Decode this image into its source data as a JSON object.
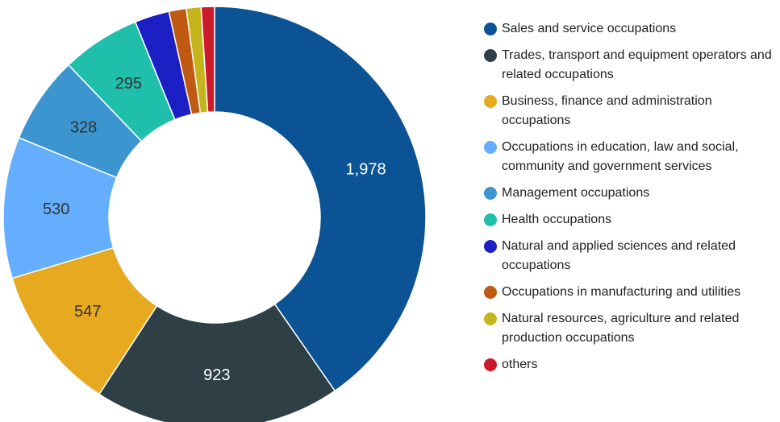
{
  "chart_data": {
    "type": "pie",
    "donut": true,
    "categories": [
      "Sales and service occupations",
      "Trades, transport and equipment operators and related occupations",
      "Business, finance and administration occupations",
      "Occupations in education, law and social, community and government services",
      "Management occupations",
      "Health occupations",
      "Natural and applied sciences and related occupations",
      "Occupations in manufacturing and utilities",
      "Natural resources, agriculture and related production occupations",
      "others"
    ],
    "values": [
      1978,
      923,
      547,
      530,
      328,
      295,
      130,
      65,
      55,
      50
    ],
    "value_labels": [
      "1,978",
      "923",
      "547",
      "530",
      "328",
      "295",
      null,
      null,
      null,
      null
    ],
    "colors": [
      "#0b5394",
      "#2e3f45",
      "#e6a91f",
      "#64aefd",
      "#3d95cf",
      "#1fbfab",
      "#1c1fc3",
      "#c05a12",
      "#c4b51c",
      "#cc1a2a"
    ],
    "label_colors": [
      "#ffffff",
      "#ffffff",
      "#333333",
      "#333333",
      "#333333",
      "#333333",
      "#333333",
      "#333333",
      "#333333",
      "#333333"
    ]
  }
}
